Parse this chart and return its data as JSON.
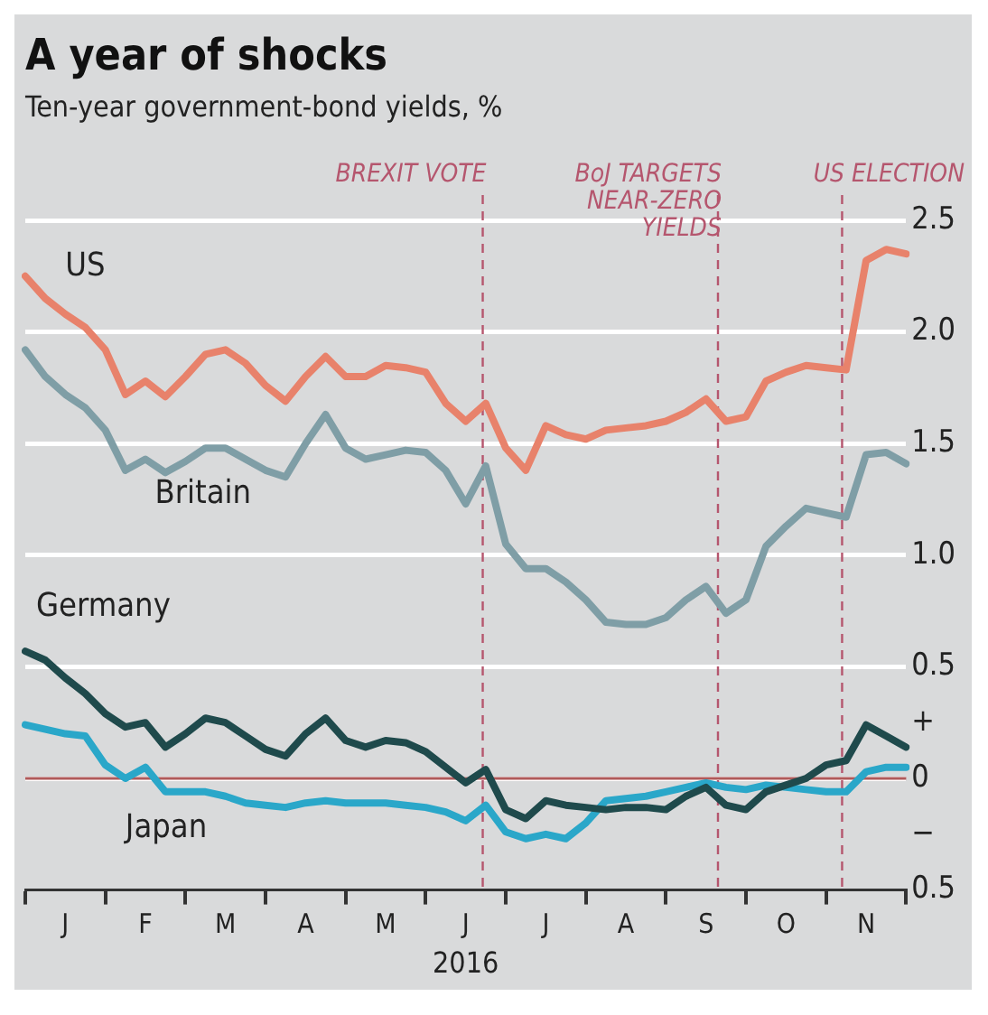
{
  "chart_data": {
    "type": "line",
    "title": "A year of shocks",
    "subtitle": "Ten-year government-bond yields, %",
    "xlabel": "2016",
    "categories": [
      null,
      null,
      "J",
      null,
      null,
      null,
      "F",
      null,
      null,
      null,
      "M",
      null,
      null,
      null,
      "A",
      null,
      null,
      null,
      "M",
      null,
      null,
      null,
      "J",
      null,
      null,
      null,
      "J",
      null,
      null,
      null,
      "A",
      null,
      null,
      null,
      "S",
      null,
      null,
      null,
      "O",
      null,
      null,
      null,
      "N",
      null,
      null
    ],
    "series": [
      {
        "name": "US",
        "color": "#e8826b",
        "values": [
          2.25,
          2.15,
          2.08,
          2.02,
          1.92,
          1.72,
          1.78,
          1.71,
          1.8,
          1.9,
          1.92,
          1.86,
          1.76,
          1.69,
          1.8,
          1.89,
          1.8,
          1.8,
          1.85,
          1.84,
          1.82,
          1.68,
          1.6,
          1.68,
          1.48,
          1.38,
          1.58,
          1.54,
          1.52,
          1.56,
          1.57,
          1.58,
          1.6,
          1.64,
          1.7,
          1.6,
          1.62,
          1.78,
          1.82,
          1.85,
          1.84,
          1.83,
          2.32,
          2.37,
          2.35
        ]
      },
      {
        "name": "Britain",
        "color": "#7f9ea6",
        "values": [
          1.92,
          1.8,
          1.72,
          1.66,
          1.56,
          1.38,
          1.43,
          1.37,
          1.42,
          1.48,
          1.48,
          1.43,
          1.38,
          1.35,
          1.5,
          1.63,
          1.48,
          1.43,
          1.45,
          1.47,
          1.46,
          1.38,
          1.23,
          1.4,
          1.05,
          0.94,
          0.94,
          0.88,
          0.8,
          0.7,
          0.69,
          0.69,
          0.72,
          0.8,
          0.86,
          0.74,
          0.8,
          1.04,
          1.13,
          1.21,
          1.19,
          1.17,
          1.45,
          1.46,
          1.41
        ]
      },
      {
        "name": "Germany",
        "color": "#1f4a4c",
        "values": [
          0.57,
          0.53,
          0.45,
          0.38,
          0.29,
          0.23,
          0.25,
          0.14,
          0.2,
          0.27,
          0.25,
          0.19,
          0.13,
          0.1,
          0.2,
          0.27,
          0.17,
          0.14,
          0.17,
          0.16,
          0.12,
          0.05,
          -0.02,
          0.04,
          -0.14,
          -0.18,
          -0.1,
          -0.12,
          -0.13,
          -0.14,
          -0.13,
          -0.13,
          -0.14,
          -0.08,
          -0.04,
          -0.12,
          -0.14,
          -0.06,
          -0.03,
          0,
          0.06,
          0.08,
          0.24,
          0.19,
          0.14
        ]
      },
      {
        "name": "Japan",
        "color": "#2aa7c9",
        "values": [
          0.24,
          0.22,
          0.2,
          0.19,
          0.06,
          0,
          0.05,
          -0.06,
          -0.06,
          -0.06,
          -0.08,
          -0.11,
          -0.12,
          -0.13,
          -0.11,
          -0.1,
          -0.11,
          -0.11,
          -0.11,
          -0.12,
          -0.13,
          -0.15,
          -0.19,
          -0.12,
          -0.24,
          -0.27,
          -0.25,
          -0.27,
          -0.2,
          -0.1,
          -0.09,
          -0.08,
          -0.06,
          -0.04,
          -0.02,
          -0.04,
          -0.05,
          -0.03,
          -0.04,
          -0.05,
          -0.06,
          -0.06,
          0.03,
          0.05,
          0.05
        ]
      }
    ],
    "ylim": [
      -0.5,
      2.5
    ],
    "yticks": [
      {
        "value": -0.5,
        "label": "0.5"
      },
      {
        "value": -0.25,
        "label": "−"
      },
      0,
      {
        "value": 0.25,
        "label": "+"
      },
      0.5,
      {
        "value": 1,
        "label": "1.0"
      },
      1.5,
      {
        "value": 2,
        "label": "2.0"
      },
      2.5
    ],
    "grid": "y",
    "legend": false,
    "marker": "none",
    "line_style": "solid",
    "annotations": [
      "BREXIT VOTE",
      "BoJ TARGETS NEAR-ZERO YIELDS",
      "US ELECTION"
    ],
    "ref_lines": [
      {
        "axis": "y",
        "value": 0,
        "color": "#b05a5a",
        "line_style": "solid"
      }
    ]
  }
}
